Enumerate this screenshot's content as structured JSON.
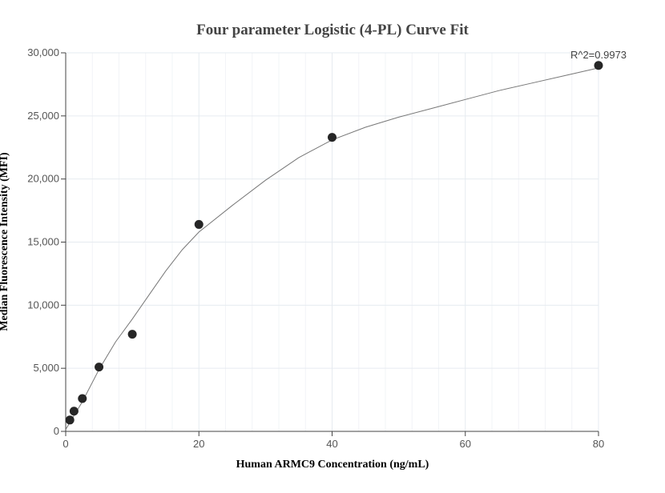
{
  "chart_data": {
    "type": "scatter",
    "title": "Four parameter Logistic (4-PL) Curve Fit",
    "xlabel": "Human ARMC9 Concentration (ng/mL)",
    "ylabel": "Median Fluorescence Intensity (MFI)",
    "xlim": [
      0,
      80
    ],
    "ylim": [
      0,
      30000
    ],
    "x_ticks": [
      0,
      20,
      40,
      60,
      80
    ],
    "x_tick_labels": [
      "0",
      "20",
      "40",
      "60",
      "80"
    ],
    "y_ticks": [
      0,
      5000,
      10000,
      15000,
      20000,
      25000,
      30000
    ],
    "y_tick_labels": [
      "0",
      "5,000",
      "10,000",
      "15,000",
      "20,000",
      "25,000",
      "30,000"
    ],
    "grid": true,
    "points": [
      {
        "x": 0.625,
        "y": 900
      },
      {
        "x": 1.25,
        "y": 1600
      },
      {
        "x": 2.5,
        "y": 2600
      },
      {
        "x": 5,
        "y": 5100
      },
      {
        "x": 10,
        "y": 7700
      },
      {
        "x": 20,
        "y": 16400
      },
      {
        "x": 40,
        "y": 23300
      },
      {
        "x": 80,
        "y": 29000
      }
    ],
    "fit_curve": [
      [
        0,
        150
      ],
      [
        0.625,
        700
      ],
      [
        1.25,
        1250
      ],
      [
        2.5,
        2350
      ],
      [
        5,
        4900
      ],
      [
        7.5,
        7100
      ],
      [
        10,
        8900
      ],
      [
        12.5,
        10800
      ],
      [
        15,
        12700
      ],
      [
        17.5,
        14400
      ],
      [
        20,
        15800
      ],
      [
        25,
        17900
      ],
      [
        30,
        19900
      ],
      [
        35,
        21700
      ],
      [
        40,
        23100
      ],
      [
        45,
        24100
      ],
      [
        50,
        24900
      ],
      [
        55,
        25600
      ],
      [
        60,
        26300
      ],
      [
        65,
        27000
      ],
      [
        70,
        27600
      ],
      [
        75,
        28200
      ],
      [
        80,
        28800
      ]
    ],
    "annotation": "R^2=0.9973",
    "colors": {
      "points": "#262626",
      "curve": "#777777",
      "grid": "#e6ebf0"
    }
  }
}
